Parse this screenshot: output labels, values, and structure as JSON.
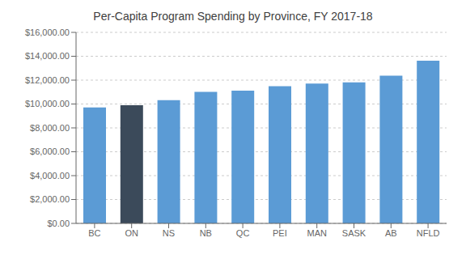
{
  "chart_data": {
    "type": "bar",
    "title": "Per-Capita Program Spending by Province, FY 2017-18",
    "categories": [
      "BC",
      "ON",
      "NS",
      "NB",
      "QC",
      "PEI",
      "MAN",
      "SASK",
      "AB",
      "NFLD"
    ],
    "values": [
      9720,
      9900,
      10320,
      11020,
      11120,
      11500,
      11720,
      11820,
      12380,
      13620
    ],
    "colors": [
      "#5b9bd5",
      "#3b4a5a",
      "#5b9bd5",
      "#5b9bd5",
      "#5b9bd5",
      "#5b9bd5",
      "#5b9bd5",
      "#5b9bd5",
      "#5b9bd5",
      "#5b9bd5"
    ],
    "ylim": [
      0,
      16000
    ],
    "yticks": [
      {
        "value": 0,
        "label": "$0.00"
      },
      {
        "value": 2000,
        "label": "$2,000.00"
      },
      {
        "value": 4000,
        "label": "$4,000.00"
      },
      {
        "value": 6000,
        "label": "$6,000.00"
      },
      {
        "value": 8000,
        "label": "$8,000.00"
      },
      {
        "value": 10000,
        "label": "$10,000.00"
      },
      {
        "value": 12000,
        "label": "$12,000.00"
      },
      {
        "value": 14000,
        "label": "$14,000.00"
      },
      {
        "value": 16000,
        "label": "$16,000.00"
      }
    ],
    "grid": true
  }
}
